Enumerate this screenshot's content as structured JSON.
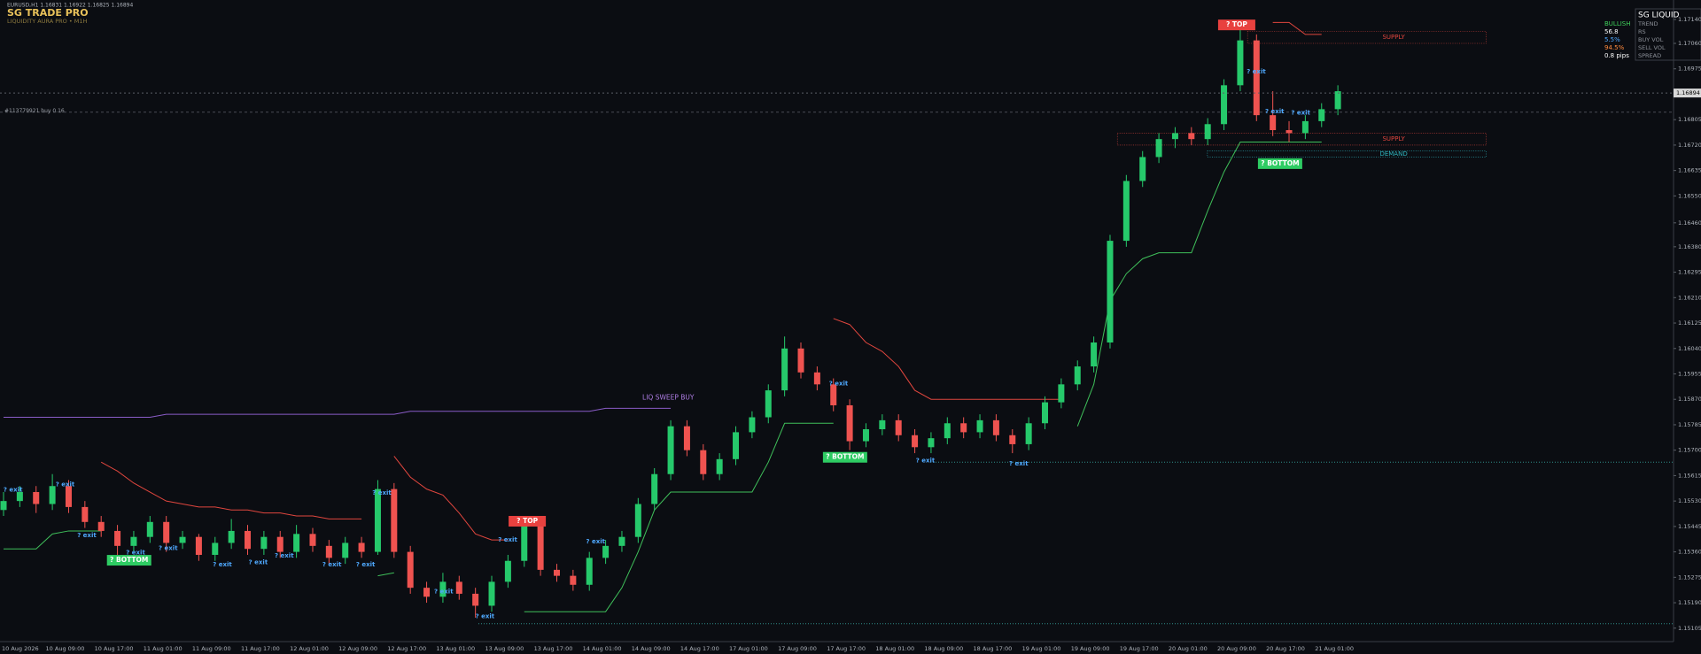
{
  "chart_data": {
    "type": "candlestick",
    "header": "EURUSD,H1  1.16831 1.16922 1.16825 1.16894",
    "logo": "SG TRADE PRO",
    "subtitle": "LIQUIDITY AURA PRO • M1H",
    "up_color": "#26c96b",
    "down_color": "#ef5350",
    "ylim": [
      1.1506,
      1.17205
    ],
    "yticks": [
      {
        "value": 1.1714,
        "label": "1.17140"
      },
      {
        "value": 1.1706,
        "label": "1.17060"
      },
      {
        "value": 1.16975,
        "label": "1.16975"
      },
      {
        "value": 1.16805,
        "label": "1.16805"
      },
      {
        "value": 1.1672,
        "label": "1.16720"
      },
      {
        "value": 1.16635,
        "label": "1.16635"
      },
      {
        "value": 1.1655,
        "label": "1.16550"
      },
      {
        "value": 1.1646,
        "label": "1.16460"
      },
      {
        "value": 1.1638,
        "label": "1.16380"
      },
      {
        "value": 1.16295,
        "label": "1.16295"
      },
      {
        "value": 1.1621,
        "label": "1.16210"
      },
      {
        "value": 1.16125,
        "label": "1.16125"
      },
      {
        "value": 1.1604,
        "label": "1.16040"
      },
      {
        "value": 1.15955,
        "label": "1.15955"
      },
      {
        "value": 1.1587,
        "label": "1.15870"
      },
      {
        "value": 1.15785,
        "label": "1.15785"
      },
      {
        "value": 1.157,
        "label": "1.15700"
      },
      {
        "value": 1.15615,
        "label": "1.15615"
      },
      {
        "value": 1.1553,
        "label": "1.15530"
      },
      {
        "value": 1.15445,
        "label": "1.15445"
      },
      {
        "value": 1.1536,
        "label": "1.15360"
      },
      {
        "value": 1.15275,
        "label": "1.15275"
      },
      {
        "value": 1.1519,
        "label": "1.15190"
      },
      {
        "value": 1.15105,
        "label": "1.15105"
      }
    ],
    "current_price": 1.16894,
    "x_labels": [
      "10 Aug 2026",
      "10 Aug 09:00",
      "10 Aug 17:00",
      "11 Aug 01:00",
      "11 Aug 09:00",
      "11 Aug 17:00",
      "12 Aug 01:00",
      "12 Aug 09:00",
      "12 Aug 17:00",
      "13 Aug 01:00",
      "13 Aug 09:00",
      "13 Aug 17:00",
      "14 Aug 01:00",
      "14 Aug 09:00",
      "14 Aug 17:00",
      "17 Aug 01:00",
      "17 Aug 09:00",
      "17 Aug 17:00",
      "18 Aug 01:00",
      "18 Aug 09:00",
      "18 Aug 17:00",
      "19 Aug 01:00",
      "19 Aug 09:00",
      "19 Aug 17:00",
      "20 Aug 01:00",
      "20 Aug 09:00",
      "20 Aug 17:00",
      "21 Aug 01:00"
    ],
    "candles": [
      [
        1.155,
        1.1556,
        1.1548,
        1.1553
      ],
      [
        1.1553,
        1.1558,
        1.1551,
        1.1556
      ],
      [
        1.1556,
        1.1558,
        1.1549,
        1.1552
      ],
      [
        1.1552,
        1.1562,
        1.155,
        1.1558
      ],
      [
        1.1558,
        1.156,
        1.1549,
        1.1551
      ],
      [
        1.1551,
        1.1553,
        1.1544,
        1.1546
      ],
      [
        1.1546,
        1.1548,
        1.1541,
        1.1543
      ],
      [
        1.1543,
        1.1545,
        1.1535,
        1.1538
      ],
      [
        1.1538,
        1.1543,
        1.1536,
        1.1541
      ],
      [
        1.1541,
        1.1548,
        1.1539,
        1.1546
      ],
      [
        1.1546,
        1.1548,
        1.1536,
        1.1539
      ],
      [
        1.1539,
        1.1543,
        1.1537,
        1.1541
      ],
      [
        1.1541,
        1.1542,
        1.1533,
        1.1535
      ],
      [
        1.1535,
        1.1541,
        1.1533,
        1.1539
      ],
      [
        1.1539,
        1.1547,
        1.1537,
        1.1543
      ],
      [
        1.1543,
        1.1545,
        1.1535,
        1.1537
      ],
      [
        1.1537,
        1.1543,
        1.1535,
        1.1541
      ],
      [
        1.1541,
        1.1543,
        1.1534,
        1.1536
      ],
      [
        1.1536,
        1.1545,
        1.1534,
        1.1542
      ],
      [
        1.1542,
        1.1544,
        1.1536,
        1.1538
      ],
      [
        1.1538,
        1.154,
        1.1532,
        1.1534
      ],
      [
        1.1534,
        1.1541,
        1.1532,
        1.1539
      ],
      [
        1.1539,
        1.1541,
        1.1534,
        1.1536
      ],
      [
        1.1536,
        1.156,
        1.1535,
        1.1557
      ],
      [
        1.1557,
        1.1559,
        1.1534,
        1.1536
      ],
      [
        1.1536,
        1.1538,
        1.1522,
        1.1524
      ],
      [
        1.1524,
        1.1526,
        1.1519,
        1.1521
      ],
      [
        1.1521,
        1.1529,
        1.1519,
        1.1526
      ],
      [
        1.1526,
        1.1528,
        1.152,
        1.1522
      ],
      [
        1.1522,
        1.1524,
        1.1514,
        1.1518
      ],
      [
        1.1518,
        1.1528,
        1.1516,
        1.1526
      ],
      [
        1.1526,
        1.1535,
        1.1524,
        1.1533
      ],
      [
        1.1533,
        1.1548,
        1.1531,
        1.1545
      ],
      [
        1.1545,
        1.1547,
        1.1528,
        1.153
      ],
      [
        1.153,
        1.1532,
        1.1526,
        1.1528
      ],
      [
        1.1528,
        1.153,
        1.1523,
        1.1525
      ],
      [
        1.1525,
        1.1536,
        1.1523,
        1.1534
      ],
      [
        1.1534,
        1.154,
        1.1532,
        1.1538
      ],
      [
        1.1538,
        1.1543,
        1.1536,
        1.1541
      ],
      [
        1.1541,
        1.1554,
        1.1539,
        1.1552
      ],
      [
        1.1552,
        1.1564,
        1.155,
        1.1562
      ],
      [
        1.1562,
        1.158,
        1.156,
        1.1578
      ],
      [
        1.1578,
        1.158,
        1.1568,
        1.157
      ],
      [
        1.157,
        1.1572,
        1.156,
        1.1562
      ],
      [
        1.1562,
        1.1569,
        1.156,
        1.1567
      ],
      [
        1.1567,
        1.1578,
        1.1565,
        1.1576
      ],
      [
        1.1576,
        1.1583,
        1.1574,
        1.1581
      ],
      [
        1.1581,
        1.1592,
        1.1579,
        1.159
      ],
      [
        1.159,
        1.1608,
        1.1588,
        1.1604
      ],
      [
        1.1604,
        1.1606,
        1.1594,
        1.1596
      ],
      [
        1.1596,
        1.1598,
        1.159,
        1.1592
      ],
      [
        1.1592,
        1.1594,
        1.1583,
        1.1585
      ],
      [
        1.1585,
        1.1587,
        1.157,
        1.1573
      ],
      [
        1.1573,
        1.1579,
        1.1571,
        1.1577
      ],
      [
        1.1577,
        1.1582,
        1.1575,
        1.158
      ],
      [
        1.158,
        1.1582,
        1.1573,
        1.1575
      ],
      [
        1.1575,
        1.1577,
        1.1569,
        1.1571
      ],
      [
        1.1571,
        1.1576,
        1.1569,
        1.1574
      ],
      [
        1.1574,
        1.1581,
        1.1572,
        1.1579
      ],
      [
        1.1579,
        1.1581,
        1.1574,
        1.1576
      ],
      [
        1.1576,
        1.1582,
        1.1574,
        1.158
      ],
      [
        1.158,
        1.1582,
        1.1573,
        1.1575
      ],
      [
        1.1575,
        1.1577,
        1.1569,
        1.1572
      ],
      [
        1.1572,
        1.1581,
        1.157,
        1.1579
      ],
      [
        1.1579,
        1.1588,
        1.1577,
        1.1586
      ],
      [
        1.1586,
        1.1594,
        1.1584,
        1.1592
      ],
      [
        1.1592,
        1.16,
        1.159,
        1.1598
      ],
      [
        1.1598,
        1.1608,
        1.1596,
        1.1606
      ],
      [
        1.1606,
        1.1642,
        1.1604,
        1.164
      ],
      [
        1.164,
        1.1662,
        1.1638,
        1.166
      ],
      [
        1.166,
        1.167,
        1.1658,
        1.1668
      ],
      [
        1.1668,
        1.1676,
        1.1666,
        1.1674
      ],
      [
        1.1674,
        1.1678,
        1.1671,
        1.1676
      ],
      [
        1.1676,
        1.1678,
        1.1672,
        1.1674
      ],
      [
        1.1674,
        1.1681,
        1.1672,
        1.1679
      ],
      [
        1.1679,
        1.1694,
        1.1677,
        1.1692
      ],
      [
        1.1692,
        1.1712,
        1.169,
        1.1707
      ],
      [
        1.1707,
        1.1709,
        1.168,
        1.1682
      ],
      [
        1.1682,
        1.169,
        1.1675,
        1.1677
      ],
      [
        1.1677,
        1.168,
        1.1673,
        1.1676
      ],
      [
        1.1676,
        1.1682,
        1.1674,
        1.168
      ],
      [
        1.168,
        1.1686,
        1.1678,
        1.1684
      ],
      [
        1.1684,
        1.1692,
        1.1682,
        1.169
      ]
    ],
    "series": [
      {
        "color": "#3fbf5a",
        "values": [
          1.1537,
          1.1537,
          1.1537,
          1.1542,
          1.1543,
          1.1543,
          1.1543,
          null,
          null,
          null,
          null,
          null,
          null,
          null,
          null,
          null,
          null,
          null,
          null,
          null,
          null,
          null,
          null,
          1.1528,
          1.1529,
          null,
          null,
          null,
          null,
          null,
          null,
          null,
          1.1516,
          1.1516,
          1.1516,
          1.1516,
          1.1516,
          1.1516,
          1.1524,
          1.1536,
          1.155,
          1.1556,
          1.1556,
          1.1556,
          1.1556,
          1.1556,
          1.1556,
          1.1566,
          1.1579,
          1.1579,
          1.1579,
          1.1579,
          null,
          null,
          null,
          null,
          null,
          null,
          null,
          null,
          null,
          null,
          null,
          null,
          null,
          null,
          1.1578,
          1.1592,
          1.162,
          1.1629,
          1.1634,
          1.1636,
          1.1636,
          1.1636,
          1.165,
          1.1663,
          1.1673,
          1.1673,
          1.1673,
          1.1673,
          1.1673,
          1.1673,
          null
        ]
      },
      {
        "color": "#e0463e",
        "values": [
          null,
          null,
          null,
          null,
          null,
          null,
          1.1566,
          1.1563,
          1.1559,
          1.1556,
          1.1553,
          1.1552,
          1.1551,
          1.1551,
          1.155,
          1.155,
          1.1549,
          1.1549,
          1.1548,
          1.1548,
          1.1547,
          1.1547,
          1.1547,
          null,
          1.1568,
          1.1561,
          1.1557,
          1.1555,
          1.1549,
          1.1542,
          1.154,
          1.154,
          null,
          null,
          null,
          null,
          null,
          null,
          null,
          null,
          null,
          null,
          null,
          null,
          null,
          null,
          null,
          null,
          null,
          null,
          null,
          1.1614,
          1.1612,
          1.1606,
          1.1603,
          1.1598,
          1.159,
          1.1587,
          1.1587,
          1.1587,
          1.1587,
          1.1587,
          1.1587,
          1.1587,
          1.1587,
          1.1587,
          null,
          null,
          null,
          null,
          null,
          null,
          null,
          null,
          null,
          null,
          null,
          null,
          1.1713,
          1.1713,
          1.1709,
          1.1709,
          null
        ]
      },
      {
        "color": "#8a5cc7",
        "values": [
          1.1581,
          1.1581,
          1.1581,
          1.1581,
          1.1581,
          1.1581,
          1.1581,
          1.1581,
          1.1581,
          1.1581,
          1.1582,
          1.1582,
          1.1582,
          1.1582,
          1.1582,
          1.1582,
          1.1582,
          1.1582,
          1.1582,
          1.1582,
          1.1582,
          1.1582,
          1.1582,
          1.1582,
          1.1582,
          1.1583,
          1.1583,
          1.1583,
          1.1583,
          1.1583,
          1.1583,
          1.1583,
          1.1583,
          1.1583,
          1.1583,
          1.1583,
          1.1583,
          1.1584,
          1.1584,
          1.1584,
          1.1584,
          1.1584,
          null,
          null,
          null,
          null,
          null,
          null,
          null,
          null,
          null,
          null,
          null,
          null,
          null,
          null,
          null,
          null,
          null,
          null,
          null,
          null,
          null,
          null,
          null,
          null,
          null,
          null,
          null,
          null,
          null,
          null,
          null,
          null,
          null,
          null,
          null,
          null,
          null,
          null,
          null,
          null,
          null
        ]
      }
    ],
    "zones": [
      {
        "label": "SUPPLY",
        "top": 1.171,
        "bottom": 1.1706
      },
      {
        "label": "SUPPLY",
        "top": 1.1676,
        "bottom": 1.1672
      },
      {
        "label": "DEMAND",
        "top": 1.167,
        "bottom": 1.1668
      }
    ],
    "order_line": {
      "label": "#113779921 buy 0.16",
      "value": 1.1683
    },
    "levels": [
      1.1566,
      1.1512
    ],
    "annotations": [
      "? TOP",
      "? TOP",
      "? BOTTOM",
      "? BOTTOM",
      "? BOTTOM",
      "? exit",
      "? exit",
      "? exit",
      "? exit",
      "? exit",
      "? exit",
      "? exit",
      "? exit",
      "? exit",
      "? exit",
      "? exit",
      "? exit",
      "? exit",
      "? exit",
      "? exit",
      "? exit",
      "? exit",
      "? exit",
      "? exit",
      "? exit",
      "? exit",
      "LIQ SWEEP BUY"
    ],
    "panel": {
      "title": "SG LIQUID",
      "rows": [
        [
          "TREND",
          "BULLISH"
        ],
        [
          "RS",
          "56.8"
        ],
        [
          "BUY VOL",
          "5.5%"
        ],
        [
          "SELL VOL",
          "94.5%"
        ],
        [
          "SPREAD",
          "0.8 pips"
        ]
      ]
    }
  }
}
